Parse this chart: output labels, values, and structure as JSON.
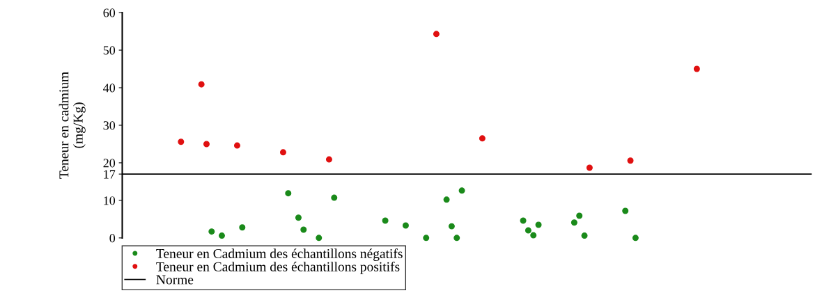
{
  "chart_data": {
    "type": "scatter",
    "ylabel": "Teneur en cadmium\n(mg/Kg)",
    "categories": [
      null,
      null,
      null,
      null,
      null,
      null,
      null,
      null,
      null,
      null,
      null,
      null,
      null,
      null,
      null,
      null,
      null,
      null,
      null,
      null,
      null,
      null,
      null,
      null,
      null,
      null,
      null,
      null,
      null,
      null,
      null,
      null,
      null,
      null,
      null,
      null,
      null,
      null,
      null,
      null,
      null,
      null,
      null,
      null,
      null,
      null,
      null,
      null,
      null,
      null,
      null,
      null,
      null,
      null,
      null,
      null,
      null,
      null,
      null,
      null,
      null,
      null,
      null,
      null,
      null,
      null,
      null,
      null,
      null,
      null,
      null,
      null,
      null,
      null,
      null,
      null,
      null,
      null,
      null,
      null,
      null,
      null,
      null,
      null,
      null,
      null,
      null,
      null,
      null,
      null,
      null,
      null,
      null,
      null,
      null,
      null,
      null,
      null,
      null,
      null,
      null,
      null,
      null,
      null,
      null,
      null,
      null,
      null,
      null,
      null,
      null,
      null,
      null,
      null,
      null,
      null,
      null,
      null,
      null,
      null,
      null,
      null,
      null,
      null,
      null,
      null,
      null,
      null,
      null,
      null,
      null,
      null,
      null,
      null,
      null
    ],
    "series": [
      {
        "name": "Teneur en Cadmium des échantillons négatifs",
        "color": "#1a8a1a",
        "values": [
          null,
          null,
          null,
          null,
          null,
          null,
          null,
          null,
          null,
          null,
          null,
          null,
          null,
          null,
          null,
          null,
          null,
          1.7,
          null,
          0.6,
          null,
          null,
          null,
          2.8,
          null,
          null,
          null,
          null,
          null,
          null,
          null,
          null,
          11.9,
          null,
          5.4,
          2.2,
          null,
          null,
          0,
          null,
          null,
          10.7,
          null,
          null,
          null,
          null,
          null,
          null,
          null,
          null,
          null,
          4.6,
          null,
          null,
          null,
          3.3,
          null,
          null,
          null,
          0,
          null,
          null,
          null,
          10.2,
          3.1,
          0,
          12.6,
          null,
          null,
          null,
          null,
          null,
          null,
          null,
          null,
          null,
          null,
          null,
          4.6,
          2.0,
          0.7,
          3.5,
          null,
          null,
          null,
          null,
          null,
          null,
          4.1,
          5.9,
          0.6,
          null,
          null,
          null,
          null,
          null,
          null,
          null,
          7.2,
          null,
          0,
          null,
          null,
          null,
          null,
          null,
          null,
          null,
          null,
          null,
          null,
          null,
          null,
          null,
          null,
          null,
          null,
          null,
          null,
          null,
          null,
          null,
          null,
          null,
          null,
          null,
          null,
          null,
          null,
          null,
          null,
          null,
          null,
          null,
          null
        ]
      },
      {
        "name": "Teneur en Cadmium des échantillons positifs",
        "color": "#e01010",
        "values": [
          null,
          null,
          null,
          null,
          null,
          null,
          null,
          null,
          null,
          null,
          null,
          25.6,
          null,
          null,
          null,
          40.9,
          25.0,
          null,
          null,
          null,
          null,
          null,
          24.6,
          null,
          null,
          null,
          null,
          null,
          null,
          null,
          null,
          22.8,
          null,
          null,
          null,
          null,
          null,
          null,
          null,
          null,
          20.9,
          null,
          null,
          null,
          null,
          null,
          null,
          null,
          null,
          null,
          null,
          null,
          null,
          null,
          null,
          null,
          null,
          null,
          null,
          null,
          null,
          54.3,
          null,
          null,
          null,
          null,
          null,
          null,
          null,
          null,
          26.5,
          null,
          null,
          null,
          null,
          null,
          null,
          null,
          null,
          null,
          null,
          null,
          null,
          null,
          null,
          null,
          null,
          null,
          null,
          null,
          null,
          18.7,
          null,
          null,
          null,
          null,
          null,
          null,
          null,
          20.6,
          null,
          null,
          null,
          null,
          null,
          null,
          null,
          null,
          null,
          null,
          null,
          null,
          45.0,
          null,
          null,
          null,
          null,
          null,
          null,
          null,
          null,
          null,
          null,
          null,
          null,
          null,
          null,
          null,
          null,
          null,
          null,
          null,
          null,
          null,
          null
        ]
      }
    ],
    "ref_lines": [
      {
        "axis": "y",
        "value": 17,
        "label": "Norme",
        "color": "#000000"
      }
    ],
    "ylim": [
      0,
      60
    ],
    "yticks": [
      0,
      10,
      17,
      20,
      30,
      40,
      50,
      60
    ],
    "tick_labels": "y",
    "marker": "circle",
    "legend": "bottom"
  }
}
